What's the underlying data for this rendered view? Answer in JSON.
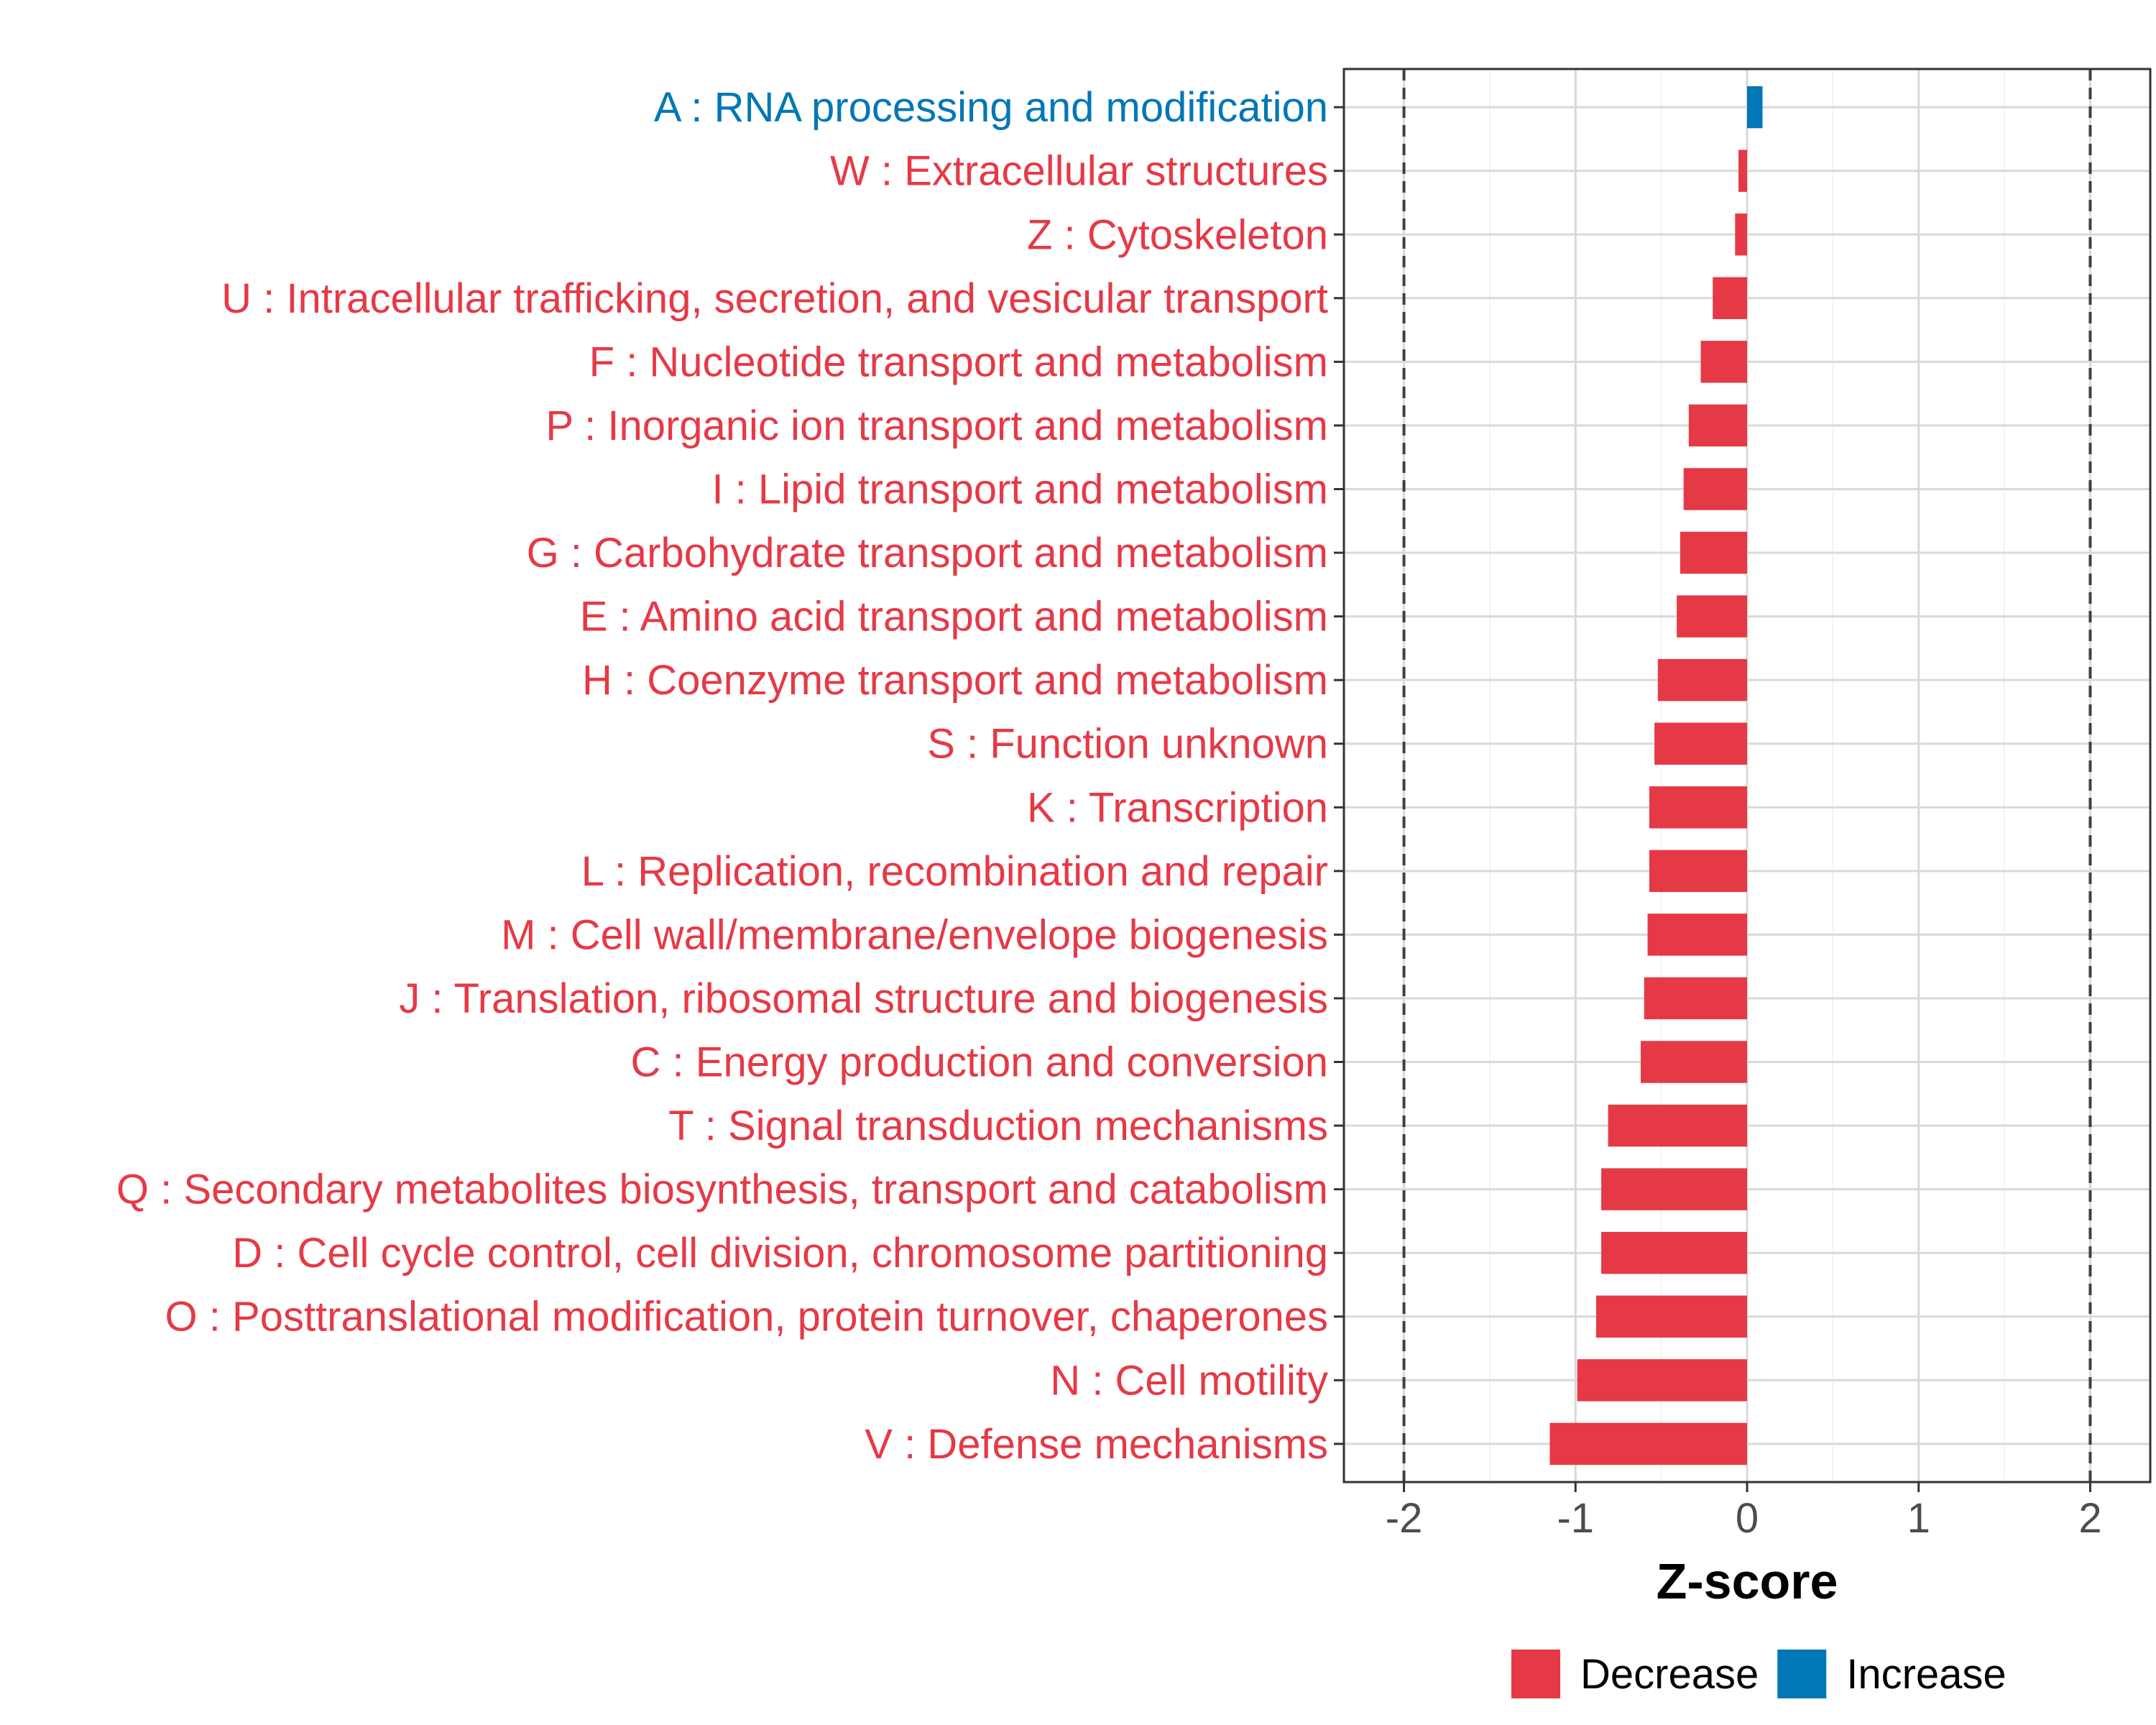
{
  "chart_data": {
    "type": "bar",
    "orientation": "horizontal",
    "title": "",
    "xlabel": "Z-score",
    "ylabel": "",
    "xlim": [
      -2.35,
      2.35
    ],
    "xticks": [
      -2,
      -1,
      0,
      1,
      2
    ],
    "xtick_labels": [
      "-2",
      "-1",
      "0",
      "1",
      "2"
    ],
    "threshold_lines": [
      -2,
      2
    ],
    "grid": true,
    "legend_position": "bottom",
    "categories": [
      "A : RNA processing and modification",
      "W : Extracellular structures",
      "Z : Cytoskeleton",
      "U : Intracellular trafficking, secretion, and vesicular transport",
      "F : Nucleotide transport and metabolism",
      "P : Inorganic ion transport and metabolism",
      "I : Lipid transport and metabolism",
      "G : Carbohydrate transport and metabolism",
      "E : Amino acid transport and metabolism",
      "H : Coenzyme transport and metabolism",
      "S : Function unknown",
      "K : Transcription",
      "L : Replication, recombination and repair",
      "M : Cell wall/membrane/envelope biogenesis",
      "J : Translation, ribosomal structure and biogenesis",
      "C : Energy production and conversion",
      "T : Signal transduction mechanisms",
      "Q : Secondary metabolites biosynthesis, transport and catabolism",
      "D : Cell cycle control, cell division, chromosome partitioning",
      "O : Posttranslational modification, protein turnover, chaperones",
      "N : Cell motility",
      "V : Defense mechanisms"
    ],
    "values": [
      0.09,
      -0.05,
      -0.07,
      -0.2,
      -0.27,
      -0.34,
      -0.37,
      -0.39,
      -0.41,
      -0.52,
      -0.54,
      -0.57,
      -0.57,
      -0.58,
      -0.6,
      -0.62,
      -0.81,
      -0.85,
      -0.85,
      -0.88,
      -0.99,
      -1.15
    ],
    "groups": [
      "Increase",
      "Decrease",
      "Decrease",
      "Decrease",
      "Decrease",
      "Decrease",
      "Decrease",
      "Decrease",
      "Decrease",
      "Decrease",
      "Decrease",
      "Decrease",
      "Decrease",
      "Decrease",
      "Decrease",
      "Decrease",
      "Decrease",
      "Decrease",
      "Decrease",
      "Decrease",
      "Decrease",
      "Decrease"
    ],
    "legend": [
      {
        "name": "Decrease",
        "color": "#e63946"
      },
      {
        "name": "Increase",
        "color": "#0077b6"
      }
    ]
  }
}
